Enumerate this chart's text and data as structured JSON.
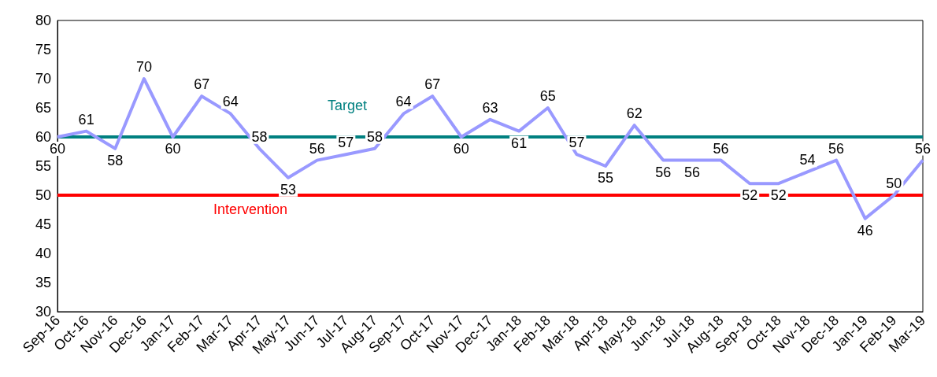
{
  "chart_data": {
    "type": "line",
    "categories": [
      "Sep-16",
      "Oct-16",
      "Nov-16",
      "Dec-16",
      "Jan-17",
      "Feb-17",
      "Mar-17",
      "Apr-17",
      "May-17",
      "Jun-17",
      "Jul-17",
      "Aug-17",
      "Sep-17",
      "Oct-17",
      "Nov-17",
      "Dec-17",
      "Jan-18",
      "Feb-18",
      "Mar-18",
      "Apr-18",
      "May-18",
      "Jun-18",
      "Jul-18",
      "Aug-18",
      "Sep-18",
      "Oct-18",
      "Nov-18",
      "Dec-18",
      "Jan-19",
      "Feb-19",
      "Mar-19"
    ],
    "series": [
      {
        "color": "#9999ff",
        "values": [
          60,
          61,
          58,
          70,
          60,
          67,
          64,
          58,
          53,
          56,
          57,
          58,
          64,
          67,
          60,
          63,
          61,
          65,
          57,
          55,
          62,
          56,
          56,
          56,
          52,
          52,
          54,
          56,
          46,
          50,
          56
        ]
      }
    ],
    "ylim": [
      30,
      80
    ],
    "yticks": [
      30,
      35,
      40,
      45,
      50,
      55,
      60,
      65,
      70,
      75,
      80
    ],
    "ref_lines": [
      {
        "axis": "y",
        "value": 60,
        "label": "Target",
        "color": "#008080"
      },
      {
        "axis": "y",
        "value": 50,
        "label": "Intervention",
        "color": "#ff0000"
      }
    ],
    "data_labels": true,
    "grid": false,
    "marker": "none",
    "line_style": "solid"
  }
}
